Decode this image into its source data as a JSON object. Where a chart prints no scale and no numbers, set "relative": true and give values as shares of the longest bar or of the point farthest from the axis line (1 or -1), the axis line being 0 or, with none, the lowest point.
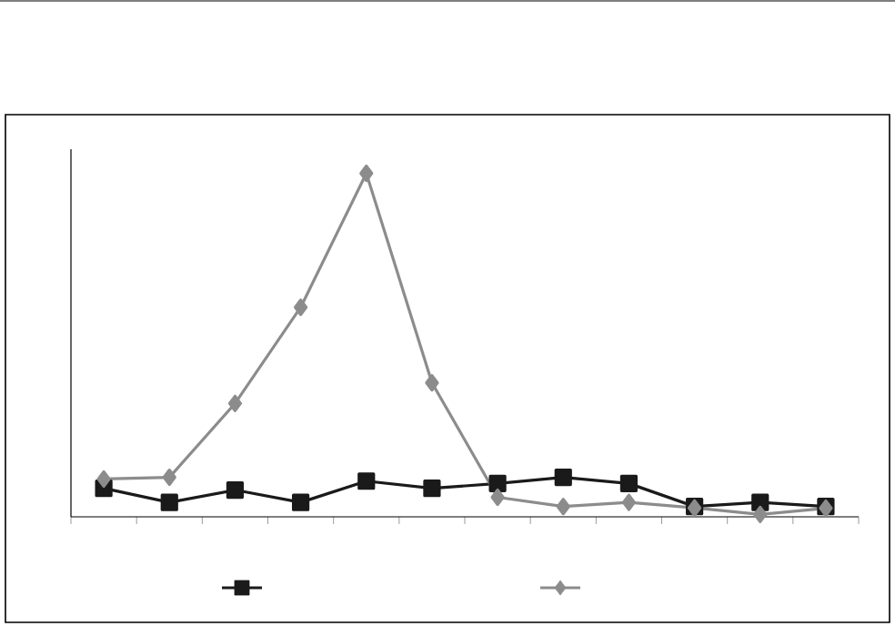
{
  "chart_data": {
    "type": "line",
    "relative": true,
    "categories": [
      null,
      null,
      null,
      null,
      null,
      null,
      null,
      null,
      null,
      null,
      null,
      null
    ],
    "series": [
      {
        "color": "#1a1a1a",
        "marker": "square",
        "values": [
          0.083,
          0.042,
          0.078,
          0.042,
          0.104,
          0.083,
          0.097,
          0.115,
          0.097,
          0.03,
          0.042,
          0.03
        ]
      },
      {
        "color": "#8c8c8c",
        "marker": "diamond",
        "values": [
          0.11,
          0.115,
          0.33,
          0.61,
          1.0,
          0.39,
          0.057,
          0.03,
          0.042,
          0.026,
          0.007,
          0.025
        ]
      }
    ]
  }
}
